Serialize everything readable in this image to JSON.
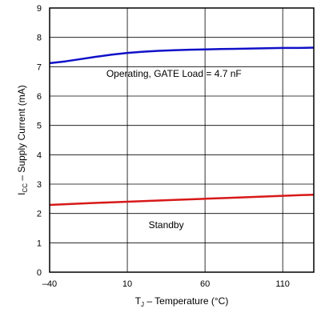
{
  "chart_data": {
    "type": "line",
    "title": "",
    "xlabel": {
      "main": "T",
      "sub": "J",
      "rest": " – Temperature (°C)"
    },
    "ylabel": {
      "main": "I",
      "sub": "CC",
      "rest": " – Supply Current (mA)"
    },
    "xlim": [
      -40,
      130
    ],
    "ylim": [
      0,
      9
    ],
    "x_ticks": [
      -40,
      10,
      60,
      110
    ],
    "y_ticks": [
      0,
      1,
      2,
      3,
      4,
      5,
      6,
      7,
      8,
      9
    ],
    "grid": true,
    "series": [
      {
        "name": "Operating, GATE Load = 4.7 nF",
        "color": "#1010c8",
        "x": [
          -40,
          -30,
          -20,
          -10,
          0,
          10,
          20,
          30,
          40,
          50,
          60,
          70,
          80,
          90,
          100,
          110,
          120,
          130
        ],
        "y": [
          7.12,
          7.18,
          7.26,
          7.34,
          7.41,
          7.47,
          7.51,
          7.54,
          7.56,
          7.58,
          7.59,
          7.6,
          7.61,
          7.62,
          7.63,
          7.64,
          7.64,
          7.65
        ]
      },
      {
        "name": "Standby",
        "color": "#d81818",
        "x": [
          -40,
          -20,
          0,
          20,
          40,
          60,
          80,
          100,
          120,
          130
        ],
        "y": [
          2.29,
          2.34,
          2.38,
          2.42,
          2.46,
          2.5,
          2.54,
          2.58,
          2.62,
          2.64
        ]
      }
    ],
    "annotations": [
      {
        "text": "Operating, GATE Load = 4.7 nF",
        "x": 40,
        "y": 6.65
      },
      {
        "text": "Standby",
        "x": 35,
        "y": 1.5
      }
    ]
  }
}
